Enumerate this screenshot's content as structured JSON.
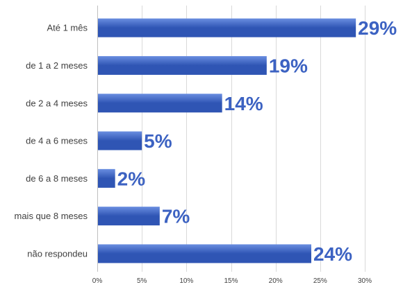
{
  "chart_data": {
    "type": "bar",
    "orientation": "horizontal",
    "categories": [
      "Até 1 mês",
      "de 1 a 2 meses",
      "de 2 a 4 meses",
      "de 4 a 6 meses",
      "de 6 a 8 meses",
      "mais que 8 meses",
      "não respondeu"
    ],
    "values": [
      29,
      19,
      14,
      5,
      2,
      7,
      24
    ],
    "data_labels": [
      "29%",
      "19%",
      "14%",
      "5%",
      "2%",
      "7%",
      "24%"
    ],
    "x_ticks": [
      0,
      5,
      10,
      15,
      20,
      25,
      30
    ],
    "x_tick_labels": [
      "0%",
      "5%",
      "10%",
      "15%",
      "20%",
      "25%",
      "30%"
    ],
    "xlim": [
      0,
      30
    ],
    "title": "",
    "xlabel": "",
    "ylabel": "",
    "grid": true,
    "legend": "none",
    "colors": {
      "bar_dark": "#2f55b4",
      "bar_light": "#6a8ee0",
      "data_label": "#3c62c2"
    }
  }
}
